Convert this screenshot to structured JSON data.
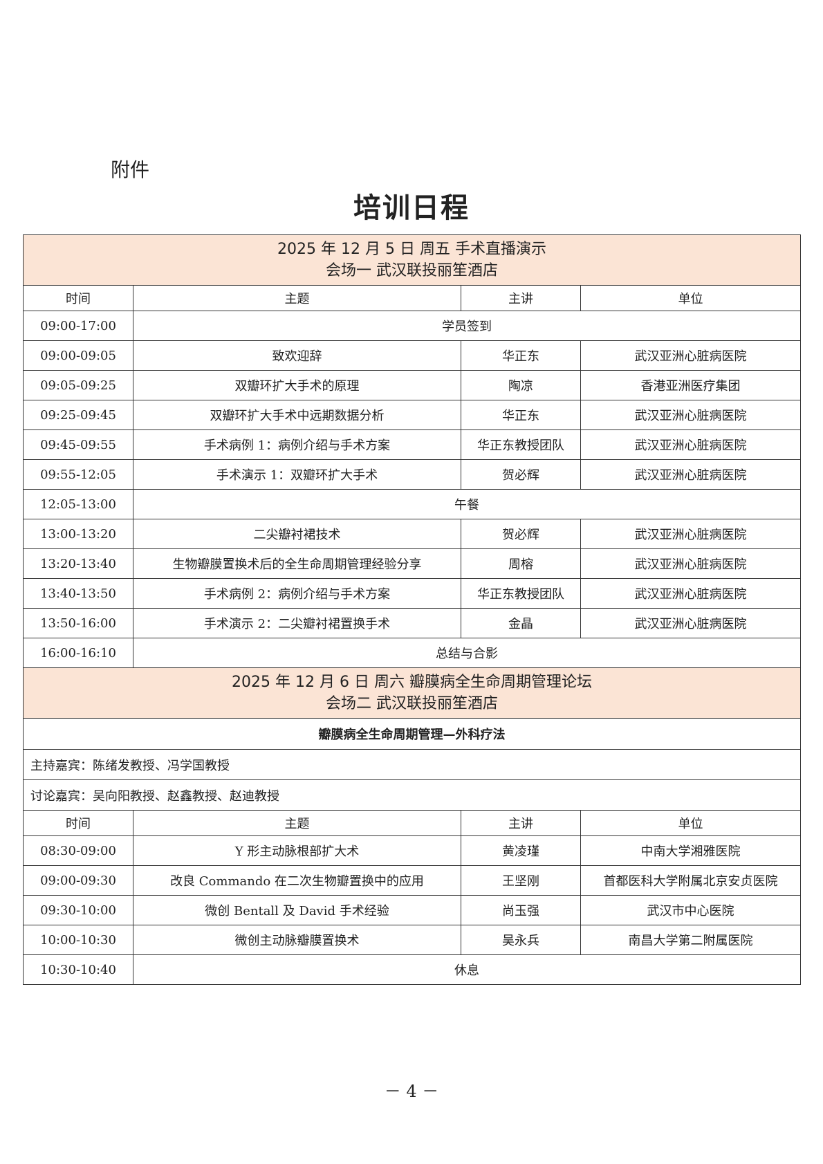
{
  "attachment_label": "附件",
  "title": "培训日程",
  "columns": [
    "时间",
    "主题",
    "主讲",
    "单位"
  ],
  "day1": {
    "header_line1": "2025 年 12 月 5 日  周五   手术直播演示",
    "header_line2": "会场一    武汉联投丽笙酒店",
    "rows": [
      {
        "time": "09:00-17:00",
        "span": "学员签到"
      },
      {
        "time": "09:00-09:05",
        "topic": "致欢迎辞",
        "speaker": "华正东",
        "unit": "武汉亚洲心脏病医院"
      },
      {
        "time": "09:05-09:25",
        "topic": "双瓣环扩大手术的原理",
        "speaker": "陶凉",
        "unit": "香港亚洲医疗集团"
      },
      {
        "time": "09:25-09:45",
        "topic": "双瓣环扩大手术中远期数据分析",
        "speaker": "华正东",
        "unit": "武汉亚洲心脏病医院"
      },
      {
        "time": "09:45-09:55",
        "topic": "手术病例 1：病例介绍与手术方案",
        "speaker": "华正东教授团队",
        "unit": "武汉亚洲心脏病医院"
      },
      {
        "time": "09:55-12:05",
        "topic": "手术演示 1：双瓣环扩大手术",
        "speaker": "贺必辉",
        "unit": "武汉亚洲心脏病医院"
      },
      {
        "time": "12:05-13:00",
        "span": "午餐"
      },
      {
        "time": "13:00-13:20",
        "topic": "二尖瓣衬裙技术",
        "speaker": "贺必辉",
        "unit": "武汉亚洲心脏病医院"
      },
      {
        "time": "13:20-13:40",
        "topic": "生物瓣膜置换术后的全生命周期管理经验分享",
        "speaker": "周榕",
        "unit": "武汉亚洲心脏病医院"
      },
      {
        "time": "13:40-13:50",
        "topic": "手术病例 2：病例介绍与手术方案",
        "speaker": "华正东教授团队",
        "unit": "武汉亚洲心脏病医院"
      },
      {
        "time": "13:50-16:00",
        "topic": "手术演示 2：二尖瓣衬裙置换手术",
        "speaker": "金晶",
        "unit": "武汉亚洲心脏病医院"
      },
      {
        "time": "16:00-16:10",
        "span": "总结与合影"
      }
    ]
  },
  "day2": {
    "header_line1": "2025 年 12 月 6 日  周六   瓣膜病全生命周期管理论坛",
    "header_line2": "会场二    武汉联投丽笙酒店",
    "session": "瓣膜病全生命周期管理—外科疗法",
    "hosts": "主持嘉宾：陈绪发教授、冯学国教授",
    "discussants": "讨论嘉宾：吴向阳教授、赵鑫教授、赵迪教授",
    "rows": [
      {
        "time": "08:30-09:00",
        "topic": "Y 形主动脉根部扩大术",
        "speaker": "黄凌瑾",
        "unit": "中南大学湘雅医院"
      },
      {
        "time": "09:00-09:30",
        "topic": "改良 Commando 在二次生物瓣置换中的应用",
        "speaker": "王坚刚",
        "unit": "首都医科大学附属北京安贞医院"
      },
      {
        "time": "09:30-10:00",
        "topic": "微创 Bentall 及 David 手术经验",
        "speaker": "尚玉强",
        "unit": "武汉市中心医院"
      },
      {
        "time": "10:00-10:30",
        "topic": "微创主动脉瓣膜置换术",
        "speaker": "吴永兵",
        "unit": "南昌大学第二附属医院"
      },
      {
        "time": "10:30-10:40",
        "span": "休息"
      }
    ]
  },
  "page_number": "－ 4 －",
  "colors": {
    "header_bg": "#fbe4d5"
  }
}
